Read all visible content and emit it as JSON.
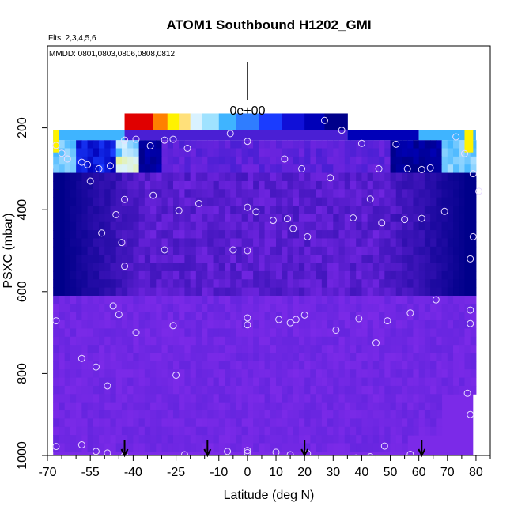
{
  "chart_data": {
    "type": "heatmap",
    "title": "ATOM1 Southbound H1202_GMI",
    "subtitle_left": "Flts: 2,3,4,5,6",
    "annotation": "MMDD: 0801,0803,0806,0808,0812",
    "scale_label": "0e+00",
    "xlabel": "Latitude (deg N)",
    "ylabel": "PSXC (mbar)",
    "xlim": [
      -70,
      85
    ],
    "ylim": [
      1000,
      0
    ],
    "x_ticks": [
      -70,
      -55,
      -40,
      -25,
      -10,
      0,
      10,
      20,
      30,
      40,
      50,
      60,
      70,
      80
    ],
    "x_minor_ticks": [
      -65,
      -60,
      -50,
      -45,
      -35,
      -30,
      -20,
      -15,
      -5,
      5,
      15,
      25,
      35,
      45,
      55,
      65,
      75,
      85
    ],
    "y_ticks": [
      200,
      400,
      600,
      800,
      1000
    ],
    "arrow_latitudes": [
      -43,
      -14,
      20,
      61
    ],
    "colors": {
      "background_fill": "#7b2ae8",
      "deep_purple": "#6f25e0",
      "blue_purple": "#4a1fd4",
      "dark_blue": "#0000b8",
      "navy": "#00008a",
      "mid_blue": "#1a3cff",
      "light_blue": "#3fb4ff",
      "pale": "#d9f2ff",
      "yellow": "#fff200",
      "orange": "#ff8000",
      "red": "#e00000",
      "marker": "#e8dcff"
    },
    "observations": [
      [
        -67,
        243
      ],
      [
        -65,
        262
      ],
      [
        -63,
        276
      ],
      [
        -58,
        284
      ],
      [
        -56,
        290
      ],
      [
        -52,
        300
      ],
      [
        -48,
        293
      ],
      [
        -43,
        230
      ],
      [
        -39,
        228
      ],
      [
        -34,
        244
      ],
      [
        -29,
        230
      ],
      [
        -26,
        228
      ],
      [
        -21,
        250
      ],
      [
        -6,
        214
      ],
      [
        0,
        233
      ],
      [
        13,
        276
      ],
      [
        19,
        300
      ],
      [
        27,
        182
      ],
      [
        33,
        206
      ],
      [
        40,
        238
      ],
      [
        46,
        300
      ],
      [
        52,
        240
      ],
      [
        56,
        300
      ],
      [
        61,
        302
      ],
      [
        64,
        298
      ],
      [
        73,
        222
      ],
      [
        76,
        263
      ],
      [
        79,
        312
      ],
      [
        81,
        355
      ],
      [
        -55,
        330
      ],
      [
        -33,
        365
      ],
      [
        -43,
        375
      ],
      [
        -24,
        402
      ],
      [
        -17,
        385
      ],
      [
        -46,
        412
      ],
      [
        0,
        394
      ],
      [
        3,
        405
      ],
      [
        9,
        426
      ],
      [
        14,
        422
      ],
      [
        16,
        446
      ],
      [
        21,
        466
      ],
      [
        29,
        322
      ],
      [
        37,
        420
      ],
      [
        43,
        374
      ],
      [
        47,
        432
      ],
      [
        55,
        424
      ],
      [
        61,
        421
      ],
      [
        69,
        404
      ],
      [
        79,
        466
      ],
      [
        -51,
        457
      ],
      [
        -44,
        480
      ],
      [
        -43,
        538
      ],
      [
        -29,
        498
      ],
      [
        -5,
        498
      ],
      [
        0,
        500
      ],
      [
        78,
        520
      ],
      [
        -47,
        635
      ],
      [
        -45,
        656
      ],
      [
        -39,
        700
      ],
      [
        -26,
        683
      ],
      [
        -67,
        671
      ],
      [
        0,
        664
      ],
      [
        0,
        681
      ],
      [
        11,
        668
      ],
      [
        15,
        676
      ],
      [
        17,
        668
      ],
      [
        20,
        657
      ],
      [
        31,
        694
      ],
      [
        39,
        666
      ],
      [
        45,
        725
      ],
      [
        49,
        671
      ],
      [
        57,
        652
      ],
      [
        66,
        620
      ],
      [
        78,
        645
      ],
      [
        78,
        678
      ],
      [
        -58,
        763
      ],
      [
        -53,
        784
      ],
      [
        -49,
        830
      ],
      [
        -25,
        804
      ],
      [
        77,
        848
      ],
      [
        78,
        900
      ],
      [
        -67,
        978
      ],
      [
        -58,
        974
      ],
      [
        -53,
        990
      ],
      [
        -49,
        994
      ],
      [
        -43,
        1000
      ],
      [
        -22,
        998
      ],
      [
        -7,
        990
      ],
      [
        0,
        988
      ],
      [
        0,
        993
      ],
      [
        10,
        992
      ],
      [
        15,
        998
      ],
      [
        21,
        995
      ],
      [
        38,
        1006
      ],
      [
        43,
        1003
      ],
      [
        48,
        977
      ],
      [
        57,
        997
      ]
    ]
  }
}
